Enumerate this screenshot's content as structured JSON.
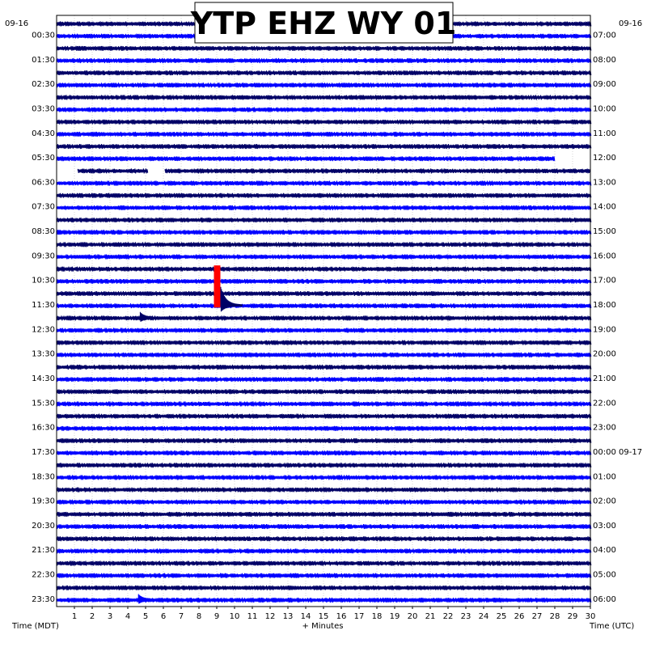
{
  "chart_data": {
    "type": "helicorder",
    "title": "YTP EHZ WY 01",
    "xlabel": "+ Minutes",
    "left_axis_label": "Time (MDT)",
    "right_axis_label": "Time (UTC)",
    "left_date": "09-16",
    "right_date": "09-16",
    "x_range": [
      0,
      30
    ],
    "x_ticks": [
      1,
      2,
      3,
      4,
      5,
      6,
      7,
      8,
      9,
      10,
      11,
      12,
      13,
      14,
      15,
      16,
      17,
      18,
      19,
      20,
      21,
      22,
      23,
      24,
      25,
      26,
      27,
      28,
      29,
      30
    ],
    "trace_colors": [
      "#000066",
      "#0000ff"
    ],
    "trace_count": 48,
    "left_hour_labels": [
      "00:30",
      "01:30",
      "02:30",
      "03:30",
      "04:30",
      "05:30",
      "06:30",
      "07:30",
      "08:30",
      "09:30",
      "10:30",
      "11:30",
      "12:30",
      "13:30",
      "14:30",
      "15:30",
      "16:30",
      "17:30",
      "18:30",
      "19:30",
      "20:30",
      "21:30",
      "22:30",
      "23:30"
    ],
    "right_hour_labels": [
      "07:00",
      "08:00",
      "09:00",
      "10:00",
      "11:00",
      "12:00",
      "13:00",
      "14:00",
      "15:00",
      "16:00",
      "17:00",
      "18:00",
      "19:00",
      "20:00",
      "21:00",
      "22:00",
      "23:00",
      "00:00 09-17",
      "01:00",
      "02:00",
      "03:00",
      "04:00",
      "05:00",
      "06:00"
    ],
    "gaps": [
      {
        "trace": 11,
        "x_start": 28.0,
        "x_end": 30.0
      },
      {
        "trace": 12,
        "x_start": 0.0,
        "x_end": 1.2
      },
      {
        "trace": 12,
        "x_start": 5.1,
        "x_end": 6.1
      }
    ],
    "events": [
      {
        "trace": 23,
        "minute": 9.0,
        "description": "clipped event",
        "color": "#ff0000"
      },
      {
        "trace": 47,
        "minute": 4.6,
        "description": "small event"
      },
      {
        "trace": 24,
        "minute": 4.7,
        "description": "small event"
      }
    ],
    "grid": true
  }
}
